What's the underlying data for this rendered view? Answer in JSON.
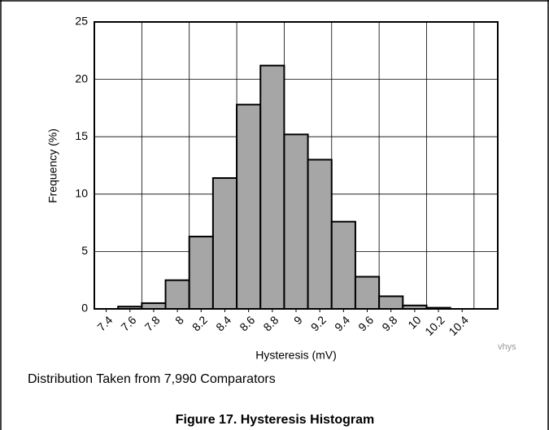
{
  "chart_data": {
    "type": "histogram",
    "title": "Figure 17. Hysteresis Histogram",
    "note": "Distribution Taken from 7,990 Comparators",
    "tag": "vhys",
    "x_label": "Hysteresis (mV)",
    "y_label": "Frequency (%)",
    "bins": [
      7.5,
      7.7,
      7.9,
      8.1,
      8.3,
      8.5,
      8.7,
      8.9,
      9.1,
      9.3,
      9.5,
      9.7,
      9.9,
      10.1,
      10.3
    ],
    "values": [
      0.2,
      0.5,
      2.5,
      6.3,
      11.4,
      17.8,
      21.2,
      15.2,
      13.0,
      7.6,
      2.8,
      1.1,
      0.3,
      0.1
    ],
    "color": "#a6a6a6",
    "xlim": [
      7.3,
      10.7
    ],
    "xticks": [
      7.4,
      7.6,
      7.8,
      8,
      8.2,
      8.4,
      8.6,
      8.8,
      9,
      9.2,
      9.4,
      9.6,
      9.8,
      10,
      10.2,
      10.4
    ],
    "xgrid": [
      7.7,
      8.1,
      8.5,
      8.9,
      9.3,
      9.7,
      10.1,
      10.5
    ],
    "ylim": [
      0,
      25
    ],
    "yticks": [
      0,
      5,
      10,
      15,
      20,
      25
    ],
    "grid": true
  }
}
